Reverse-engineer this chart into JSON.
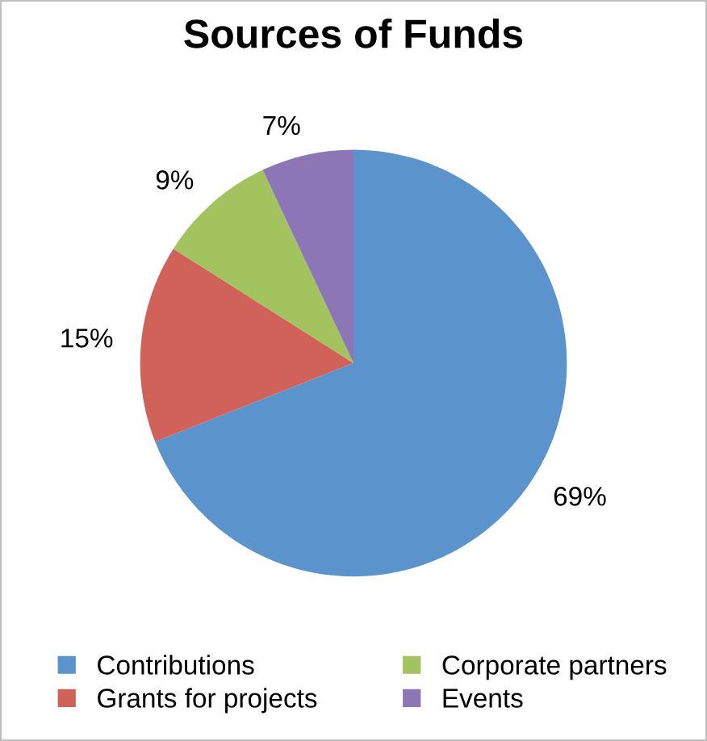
{
  "chart_data": {
    "type": "pie",
    "title": "Sources of Funds",
    "categories": [
      "Contributions",
      "Grants for projects",
      "Corporate partners",
      "Events"
    ],
    "values": [
      69,
      15,
      9,
      7
    ],
    "colors": [
      "#5b93cc",
      "#d0625a",
      "#a3c35f",
      "#8d76b5"
    ],
    "value_labels": [
      "69%",
      "15%",
      "9%",
      "7%"
    ],
    "legend": "bottom"
  }
}
